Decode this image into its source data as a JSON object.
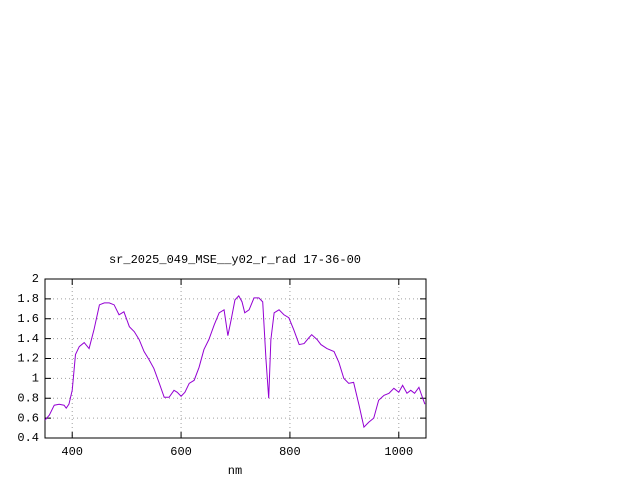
{
  "chart_data": {
    "type": "line",
    "title": "sr_2025_049_MSE__y02_r_rad 17-36-00",
    "x_label": "nm",
    "xlim": [
      350,
      1050
    ],
    "ylim": [
      0.4,
      2
    ],
    "xticks": [
      400,
      600,
      800,
      1000
    ],
    "yticks": [
      0.4,
      0.6,
      0.8,
      1,
      1.2,
      1.4,
      1.6,
      1.8,
      2
    ],
    "grid": true,
    "x": [
      350,
      358,
      367,
      376,
      385,
      389,
      394,
      400,
      406,
      413,
      422,
      431,
      440,
      450,
      459,
      468,
      477,
      486,
      495,
      505,
      514,
      523,
      532,
      541,
      550,
      560,
      569,
      578,
      587,
      593,
      600,
      607,
      615,
      624,
      633,
      642,
      651,
      661,
      670,
      679,
      686,
      692,
      699,
      706,
      712,
      717,
      725,
      734,
      743,
      750,
      756,
      761,
      765,
      771,
      780,
      789,
      798,
      807,
      817,
      826,
      835,
      840,
      850,
      857,
      868,
      881,
      890,
      899,
      908,
      917,
      927,
      936,
      945,
      954,
      963,
      973,
      982,
      991,
      1000,
      1007,
      1015,
      1022,
      1029,
      1037,
      1042,
      1048
    ],
    "series": [
      {
        "color": "#9400d3",
        "values": [
          0.58,
          0.63,
          0.73,
          0.74,
          0.73,
          0.7,
          0.74,
          0.88,
          1.24,
          1.32,
          1.36,
          1.3,
          1.49,
          1.74,
          1.76,
          1.76,
          1.74,
          1.64,
          1.67,
          1.52,
          1.47,
          1.39,
          1.27,
          1.19,
          1.1,
          0.95,
          0.81,
          0.81,
          0.88,
          0.86,
          0.82,
          0.86,
          0.95,
          0.98,
          1.11,
          1.29,
          1.39,
          1.54,
          1.66,
          1.69,
          1.43,
          1.59,
          1.79,
          1.83,
          1.77,
          1.66,
          1.69,
          1.81,
          1.81,
          1.77,
          1.19,
          0.8,
          1.39,
          1.66,
          1.69,
          1.64,
          1.61,
          1.49,
          1.34,
          1.35,
          1.41,
          1.44,
          1.39,
          1.34,
          1.3,
          1.27,
          1.16,
          1.0,
          0.95,
          0.96,
          0.73,
          0.51,
          0.56,
          0.6,
          0.78,
          0.83,
          0.85,
          0.9,
          0.86,
          0.93,
          0.85,
          0.88,
          0.85,
          0.91,
          0.83,
          0.74
        ]
      }
    ]
  }
}
